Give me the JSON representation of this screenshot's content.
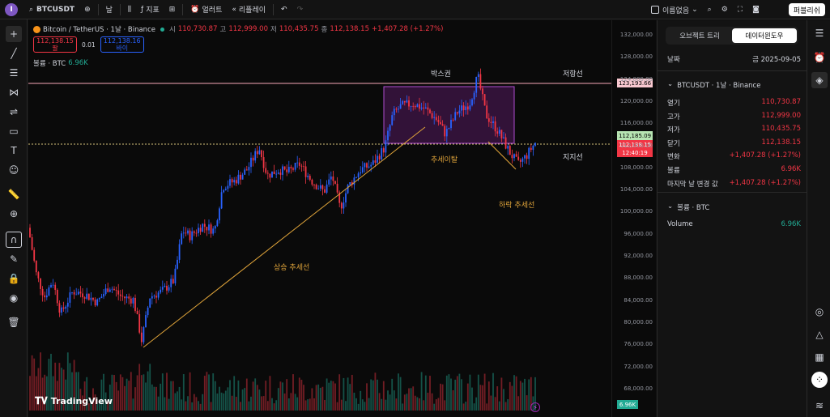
{
  "topbar": {
    "symbol": "BTCUSDT",
    "interval": "날",
    "indicators": "지표",
    "alert": "얼러트",
    "replay": "리플레이",
    "layout_name": "이름없음",
    "publish": "퍼블리쉬"
  },
  "legend": {
    "title": "Bitcoin / TetherUS · 1날 · Binance",
    "o_label": "시",
    "o": "110,730.87",
    "h_label": "고",
    "h": "112,999.00",
    "l_label": "저",
    "l": "110,435.75",
    "c_label": "종",
    "c": "112,138.15",
    "change": "+1,407.28 (+1.27%)",
    "sell_price": "112,138.15",
    "sell_label": "팔",
    "spread": "0.01",
    "buy_price": "112,138.16",
    "buy_label": "바이",
    "volume_label": "볼륨 · BTC",
    "volume_value": "6.96K"
  },
  "price_axis": {
    "labels": [
      "132,000.00",
      "128,000.00",
      "124,000.00",
      "120,000.00",
      "116,000.00",
      "112,000.00",
      "108,000.00",
      "104,000.00",
      "100,000.00",
      "96,000.00",
      "92,000.00",
      "88,000.00",
      "84,000.00",
      "80,000.00",
      "76,000.00",
      "72,000.00",
      "68,000.00"
    ],
    "resistance_tag": "123,193.66",
    "support_tag": "112,185.09",
    "last_price_tag": "112,138.15",
    "countdown_tag": "12:40:19",
    "volume_tag": "6.96K"
  },
  "annotations": {
    "box": "박스권",
    "resistance": "저항선",
    "support": "지지선",
    "breakdown": "추세이탈",
    "downtrend": "하락 추세선",
    "uptrend": "상승 추세선"
  },
  "watermark": "TradingView",
  "colors": {
    "up": "#2962ff",
    "down": "#f23645",
    "box": "#9c27b0",
    "trend": "#e0a43a"
  },
  "right_panel": {
    "tab_object_tree": "오브젝트 트리",
    "tab_data_window": "데이터윈도우",
    "date_label": "날짜",
    "date_value": "금 2025-09-05",
    "symbol_header": "BTCUSDT · 1날 · Binance",
    "rows": [
      {
        "label": "열기",
        "value": "110,730.87"
      },
      {
        "label": "고가",
        "value": "112,999.00"
      },
      {
        "label": "저가",
        "value": "110,435.75"
      },
      {
        "label": "닫기",
        "value": "112,138.15"
      },
      {
        "label": "변화",
        "value": "+1,407.28 (+1.27%)"
      },
      {
        "label": "볼륨",
        "value": "6.96K"
      },
      {
        "label": "마지막 날 변경 값",
        "value": "+1,407.28 (+1.27%)"
      }
    ],
    "volume_section": "볼륨 · BTC",
    "volume_label": "Volume",
    "volume_value": "6.96K"
  }
}
